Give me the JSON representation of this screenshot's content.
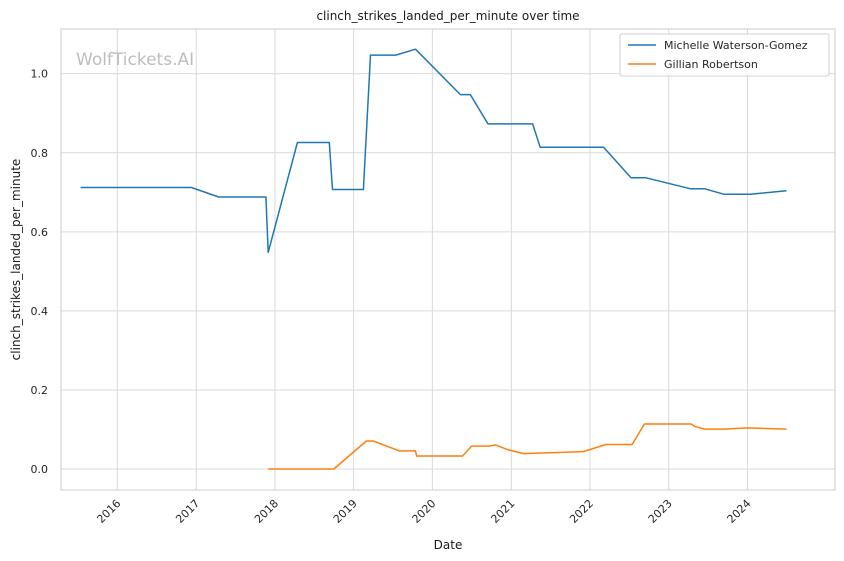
{
  "watermark": "WolfTickets.AI",
  "chart_data": {
    "type": "line",
    "title": "clinch_strikes_landed_per_minute over time",
    "xlabel": "Date",
    "ylabel": "clinch_strikes_landed_per_minute",
    "xlim": [
      "2015-04-15",
      "2025-02-10"
    ],
    "ylim": [
      -0.053,
      1.113
    ],
    "x_ticks": [
      "2016",
      "2017",
      "2018",
      "2019",
      "2020",
      "2021",
      "2022",
      "2023",
      "2024"
    ],
    "y_ticks": [
      "0.0",
      "0.2",
      "0.4",
      "0.6",
      "0.8",
      "1.0"
    ],
    "grid": true,
    "legend_position": "top-right",
    "series": [
      {
        "name": "Michelle Waterson-Gomez",
        "color": "#1f77b4",
        "points": [
          [
            "2015-07-15",
            0.712
          ],
          [
            "2016-12-10",
            0.712
          ],
          [
            "2017-04-15",
            0.688
          ],
          [
            "2017-11-20",
            0.688
          ],
          [
            "2017-12-01",
            0.548
          ],
          [
            "2018-04-15",
            0.826
          ],
          [
            "2018-09-10",
            0.826
          ],
          [
            "2018-09-25",
            0.707
          ],
          [
            "2019-02-15",
            0.707
          ],
          [
            "2019-03-20",
            1.047
          ],
          [
            "2019-07-15",
            1.047
          ],
          [
            "2019-10-15",
            1.062
          ],
          [
            "2020-05-10",
            0.947
          ],
          [
            "2020-06-25",
            0.947
          ],
          [
            "2020-09-15",
            0.873
          ],
          [
            "2021-04-10",
            0.873
          ],
          [
            "2021-05-15",
            0.814
          ],
          [
            "2022-03-05",
            0.814
          ],
          [
            "2022-07-10",
            0.737
          ],
          [
            "2022-09-15",
            0.737
          ],
          [
            "2023-04-10",
            0.709
          ],
          [
            "2023-06-15",
            0.709
          ],
          [
            "2023-09-15",
            0.695
          ],
          [
            "2024-01-15",
            0.695
          ],
          [
            "2024-06-30",
            0.704
          ]
        ]
      },
      {
        "name": "Gillian Robertson",
        "color": "#ff7f0e",
        "points": [
          [
            "2017-12-01",
            0.0
          ],
          [
            "2018-10-01",
            0.0
          ],
          [
            "2019-03-01",
            0.071
          ],
          [
            "2019-04-01",
            0.071
          ],
          [
            "2019-08-01",
            0.046
          ],
          [
            "2019-10-15",
            0.046
          ],
          [
            "2019-10-20",
            0.033
          ],
          [
            "2020-05-20",
            0.033
          ],
          [
            "2020-07-01",
            0.058
          ],
          [
            "2020-09-20",
            0.058
          ],
          [
            "2020-10-20",
            0.061
          ],
          [
            "2020-12-15",
            0.049
          ],
          [
            "2021-03-01",
            0.039
          ],
          [
            "2021-12-01",
            0.044
          ],
          [
            "2022-03-15",
            0.062
          ],
          [
            "2022-07-15",
            0.062
          ],
          [
            "2022-09-10",
            0.114
          ],
          [
            "2023-04-15",
            0.114
          ],
          [
            "2023-05-01",
            0.108
          ],
          [
            "2023-06-15",
            0.101
          ],
          [
            "2023-09-15",
            0.101
          ],
          [
            "2024-01-01",
            0.104
          ],
          [
            "2024-06-30",
            0.101
          ]
        ]
      }
    ]
  }
}
